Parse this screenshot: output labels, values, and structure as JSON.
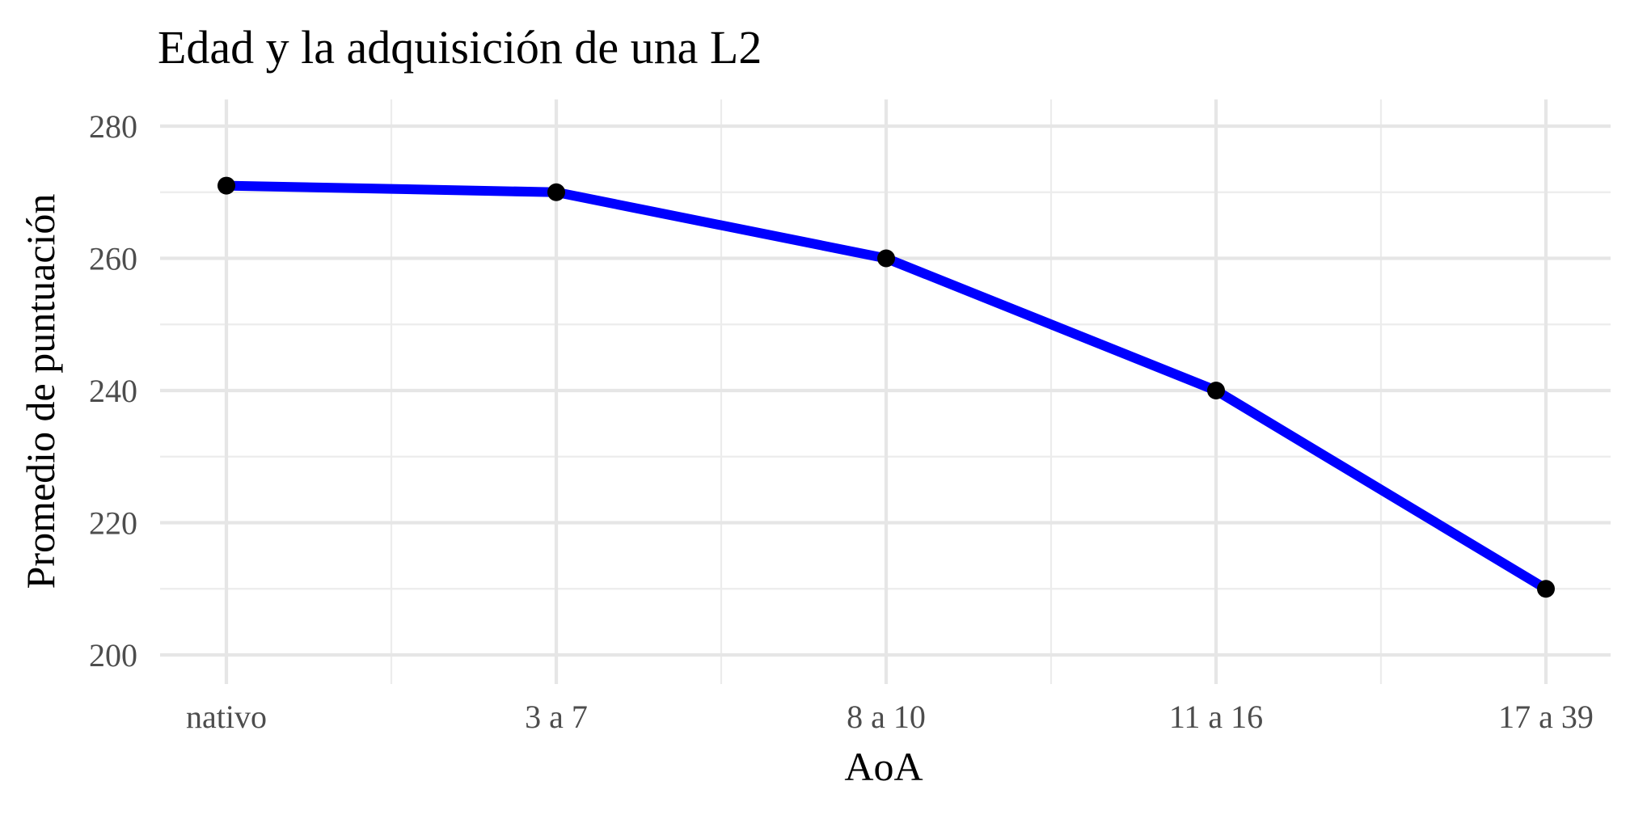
{
  "chart_data": {
    "type": "line",
    "title": "Edad y la adquisición de una L2",
    "xlabel": "AoA",
    "ylabel": "Promedio de puntuación",
    "categories": [
      "nativo",
      "3 a 7",
      "8 a 10",
      "11 a 16",
      "17 a 39"
    ],
    "series": [
      {
        "values": [
          271,
          270,
          260,
          240,
          210
        ],
        "line_color": "#0000ff",
        "point_color": "#000000"
      }
    ],
    "ylim": [
      200,
      280
    ],
    "yticks": [
      200,
      220,
      240,
      260,
      280
    ],
    "grid": true,
    "legend": "none"
  }
}
